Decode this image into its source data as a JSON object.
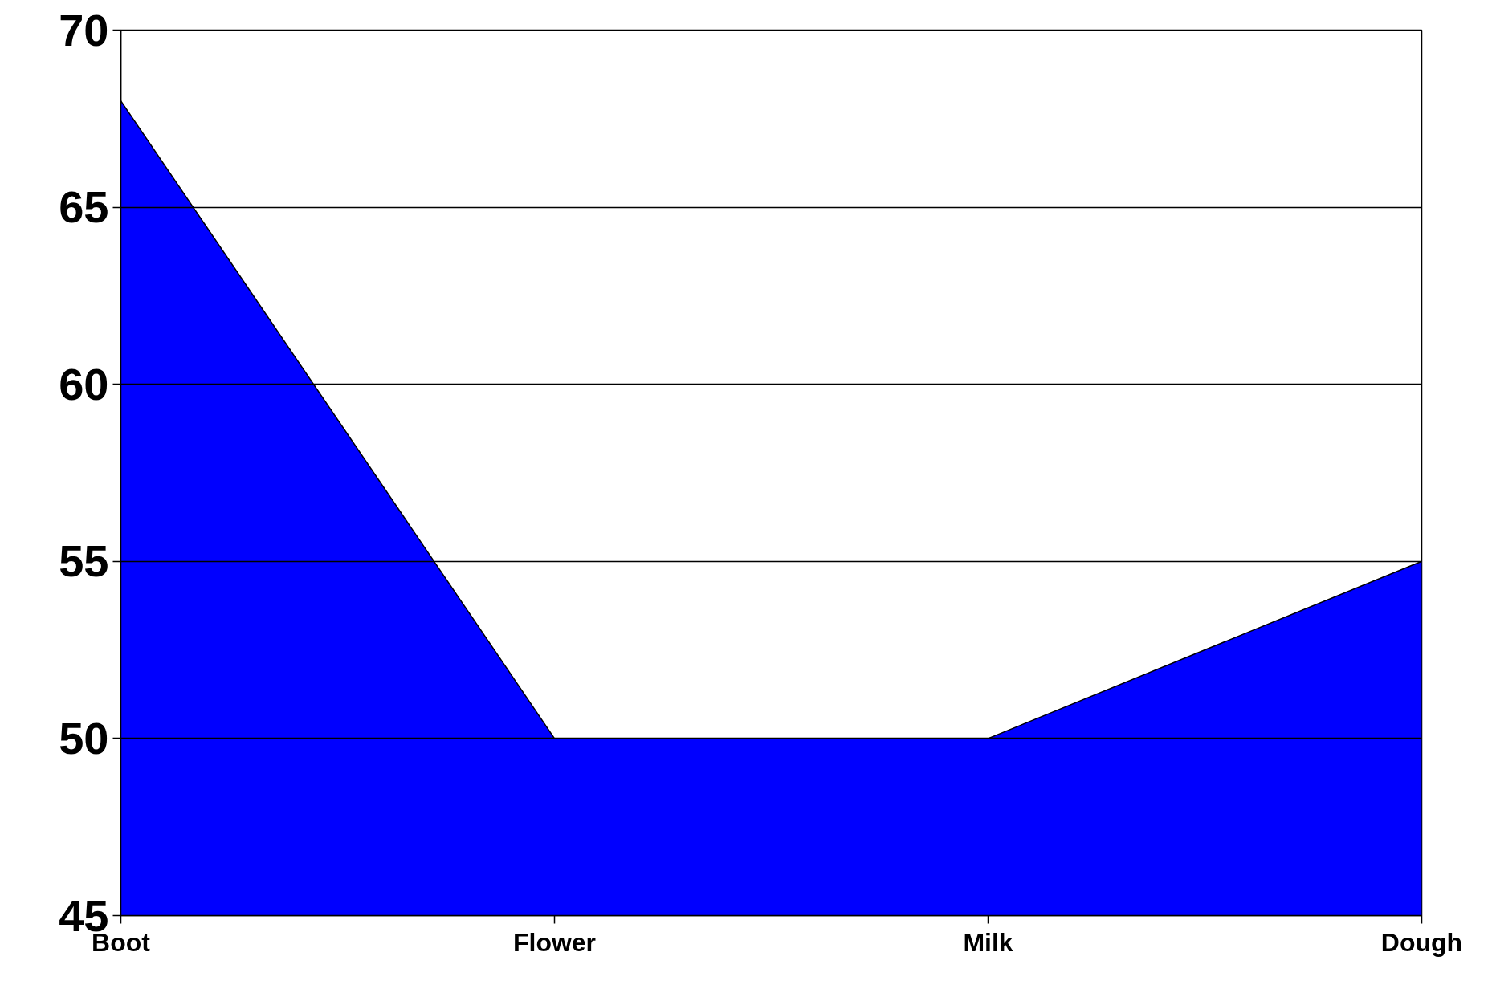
{
  "chart_data": {
    "type": "area",
    "categories": [
      "Boot",
      "Flower",
      "Milk",
      "Dough"
    ],
    "values": [
      68,
      50,
      50,
      55
    ],
    "color": "#0000ff",
    "ylim": [
      45,
      70
    ],
    "yticks": [
      45,
      50,
      55,
      60,
      65,
      70
    ],
    "grid": "y"
  }
}
